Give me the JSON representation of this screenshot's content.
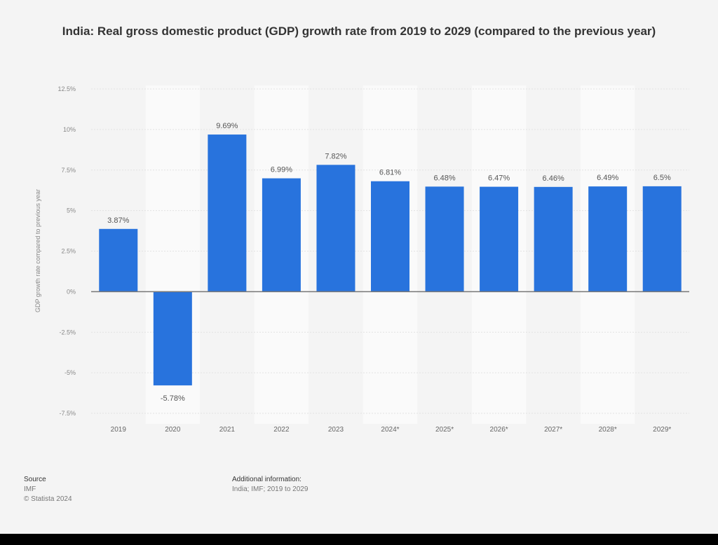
{
  "chart_data": {
    "type": "bar",
    "title": "India: Real gross domestic product (GDP) growth rate from 2019 to 2029 (compared to the previous year)",
    "ylabel": "GDP growth rate compared to previous year",
    "xlabel": "",
    "categories": [
      "2019",
      "2020",
      "2021",
      "2022",
      "2023",
      "2024*",
      "2025*",
      "2026*",
      "2027*",
      "2028*",
      "2029*"
    ],
    "values": [
      3.87,
      -5.78,
      9.69,
      6.99,
      7.82,
      6.81,
      6.48,
      6.47,
      6.46,
      6.49,
      6.5
    ],
    "data_labels": [
      "3.87%",
      "-5.78%",
      "9.69%",
      "6.99%",
      "7.82%",
      "6.81%",
      "6.48%",
      "6.47%",
      "6.46%",
      "6.49%",
      "6.5%"
    ],
    "yticks": [
      12.5,
      10,
      7.5,
      5,
      2.5,
      0,
      -2.5,
      -5,
      -7.5
    ],
    "ytick_labels": [
      "12.5%",
      "10%",
      "7.5%",
      "5%",
      "2.5%",
      "0%",
      "-2.5%",
      "-5%",
      "-7.5%"
    ],
    "ylim": [
      -7.5,
      12.5
    ],
    "grid": true,
    "bar_color": "#2873dd"
  },
  "footer": {
    "source_label": "Source",
    "source": "IMF",
    "copyright": "© Statista 2024",
    "additional_label": "Additional information:",
    "additional": "India; IMF; 2019 to 2029"
  }
}
